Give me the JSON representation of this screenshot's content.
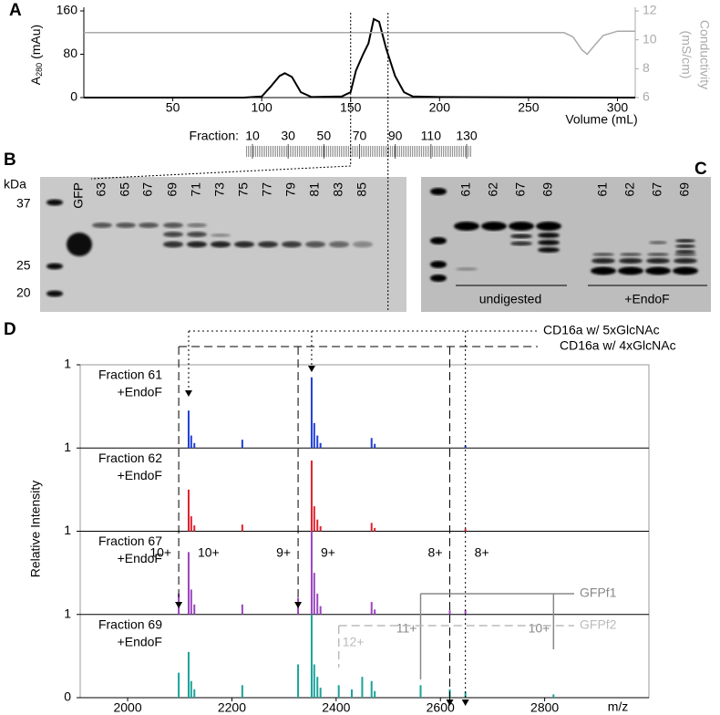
{
  "panel_labels": [
    "A",
    "B",
    "C",
    "D"
  ],
  "gel_b": {
    "unit": "kDa",
    "markers": [
      "37",
      "25",
      "20"
    ],
    "lanes": [
      "GFP",
      "63",
      "65",
      "67",
      "69",
      "71",
      "73",
      "75",
      "77",
      "79",
      "81",
      "83",
      "85"
    ]
  },
  "gel_c": {
    "lanes": [
      "61",
      "62",
      "67",
      "69",
      "61",
      "62",
      "67",
      "69"
    ],
    "groups": [
      "undigested",
      "+EndoF"
    ]
  },
  "chart_data": [
    {
      "type": "line",
      "ylabel": [
        "A",
        "280",
        " (mAu)"
      ],
      "y2label": [
        "Conductivity",
        "(mS/cm)"
      ],
      "xlabel": "Volume (mL)",
      "xlim": [
        0,
        310
      ],
      "xticks": [
        50,
        100,
        150,
        200,
        250,
        300
      ],
      "ylim": [
        0,
        160
      ],
      "yticks": [
        0,
        80,
        160
      ],
      "y2lim": [
        6,
        12
      ],
      "y2ticks": [
        6,
        8,
        10,
        12
      ],
      "fraction_label": "Fraction:",
      "fraction_ticks": [
        10,
        30,
        50,
        70,
        90,
        110,
        130
      ],
      "marked_range": [
        150,
        171
      ],
      "series": [
        {
          "color": "#000000",
          "x": [
            0,
            90,
            100,
            105,
            110,
            113,
            117,
            122,
            128,
            145,
            150,
            153,
            157,
            160,
            163,
            166,
            170,
            175,
            180,
            185,
            200,
            310
          ],
          "values": [
            0,
            0,
            2,
            20,
            40,
            45,
            38,
            10,
            1,
            2,
            10,
            50,
            80,
            100,
            145,
            140,
            90,
            40,
            10,
            2,
            1,
            0
          ]
        },
        {
          "color": "#aaaaaa",
          "axis": "y2",
          "x": [
            0,
            270,
            275,
            280,
            283,
            287,
            292,
            300,
            310
          ],
          "values": [
            10.5,
            10.5,
            10.2,
            9.3,
            9.0,
            9.6,
            10.3,
            10.6,
            10.6
          ]
        }
      ]
    },
    {
      "type": "spectrum",
      "ylabel": "Relative Intensity",
      "xlabel": "m/z",
      "xlim": [
        1909,
        3000
      ],
      "xticks": [
        2000,
        2200,
        2400,
        2600,
        2800
      ],
      "ylim": [
        0,
        1
      ],
      "yticks": [
        0,
        1
      ],
      "series": [
        {
          "name": "Fraction 61",
          "sub": "+EndoF",
          "color": "#1f3fd8",
          "x": [
            2117,
            2122,
            2128,
            2220,
            2353,
            2358,
            2364,
            2370,
            2468,
            2474,
            2648
          ],
          "values": [
            0.45,
            0.15,
            0.06,
            0.1,
            0.85,
            0.3,
            0.15,
            0.06,
            0.12,
            0.05,
            0.03
          ]
        },
        {
          "name": "Fraction 62",
          "sub": "+EndoF",
          "color": "#e0202e",
          "x": [
            2117,
            2122,
            2128,
            2220,
            2353,
            2358,
            2364,
            2370,
            2468,
            2474,
            2648
          ],
          "values": [
            0.5,
            0.18,
            0.07,
            0.08,
            0.85,
            0.3,
            0.14,
            0.06,
            0.1,
            0.04,
            0.03
          ]
        },
        {
          "name": "Fraction 67",
          "sub": "+EndoF",
          "color": "#9a44c0",
          "x": [
            2098,
            2117,
            2122,
            2128,
            2220,
            2327,
            2353,
            2358,
            2364,
            2370,
            2468,
            2474,
            2618,
            2648
          ],
          "values": [
            0.25,
            0.75,
            0.3,
            0.12,
            0.12,
            0.2,
            1.0,
            0.5,
            0.25,
            0.1,
            0.15,
            0.06,
            0.05,
            0.05
          ]
        },
        {
          "name": "Fraction 69",
          "sub": "+EndoF",
          "color": "#1aa39a",
          "x": [
            2098,
            2117,
            2122,
            2128,
            2220,
            2327,
            2353,
            2358,
            2364,
            2370,
            2405,
            2430,
            2450,
            2468,
            2474,
            2562,
            2618,
            2648,
            2817
          ],
          "values": [
            0.3,
            0.55,
            0.2,
            0.1,
            0.15,
            0.4,
            1.0,
            0.4,
            0.25,
            0.12,
            0.15,
            0.1,
            0.25,
            0.2,
            0.08,
            0.15,
            0.1,
            0.07,
            0.04
          ]
        }
      ],
      "annotations": [
        {
          "label": "CD16a w/ 5xGlcNAc",
          "style": "dotted",
          "x": [
            2117,
            2353,
            2648
          ],
          "charges": [
            "10+",
            "9+",
            "8+"
          ]
        },
        {
          "label": "CD16a w/ 4xGlcNAc",
          "style": "dashed",
          "x": [
            2098,
            2327,
            2618
          ],
          "charges": [
            "10+",
            "9+",
            "8+"
          ]
        }
      ],
      "fragments": [
        {
          "label": "GFPf1",
          "style": "solid",
          "x": [
            2562,
            2817
          ],
          "charges": [
            "11+",
            "10+"
          ]
        },
        {
          "label": "GFPf2",
          "style": "dashed",
          "x": [
            2405
          ],
          "charges": [
            "12+"
          ]
        }
      ]
    }
  ]
}
